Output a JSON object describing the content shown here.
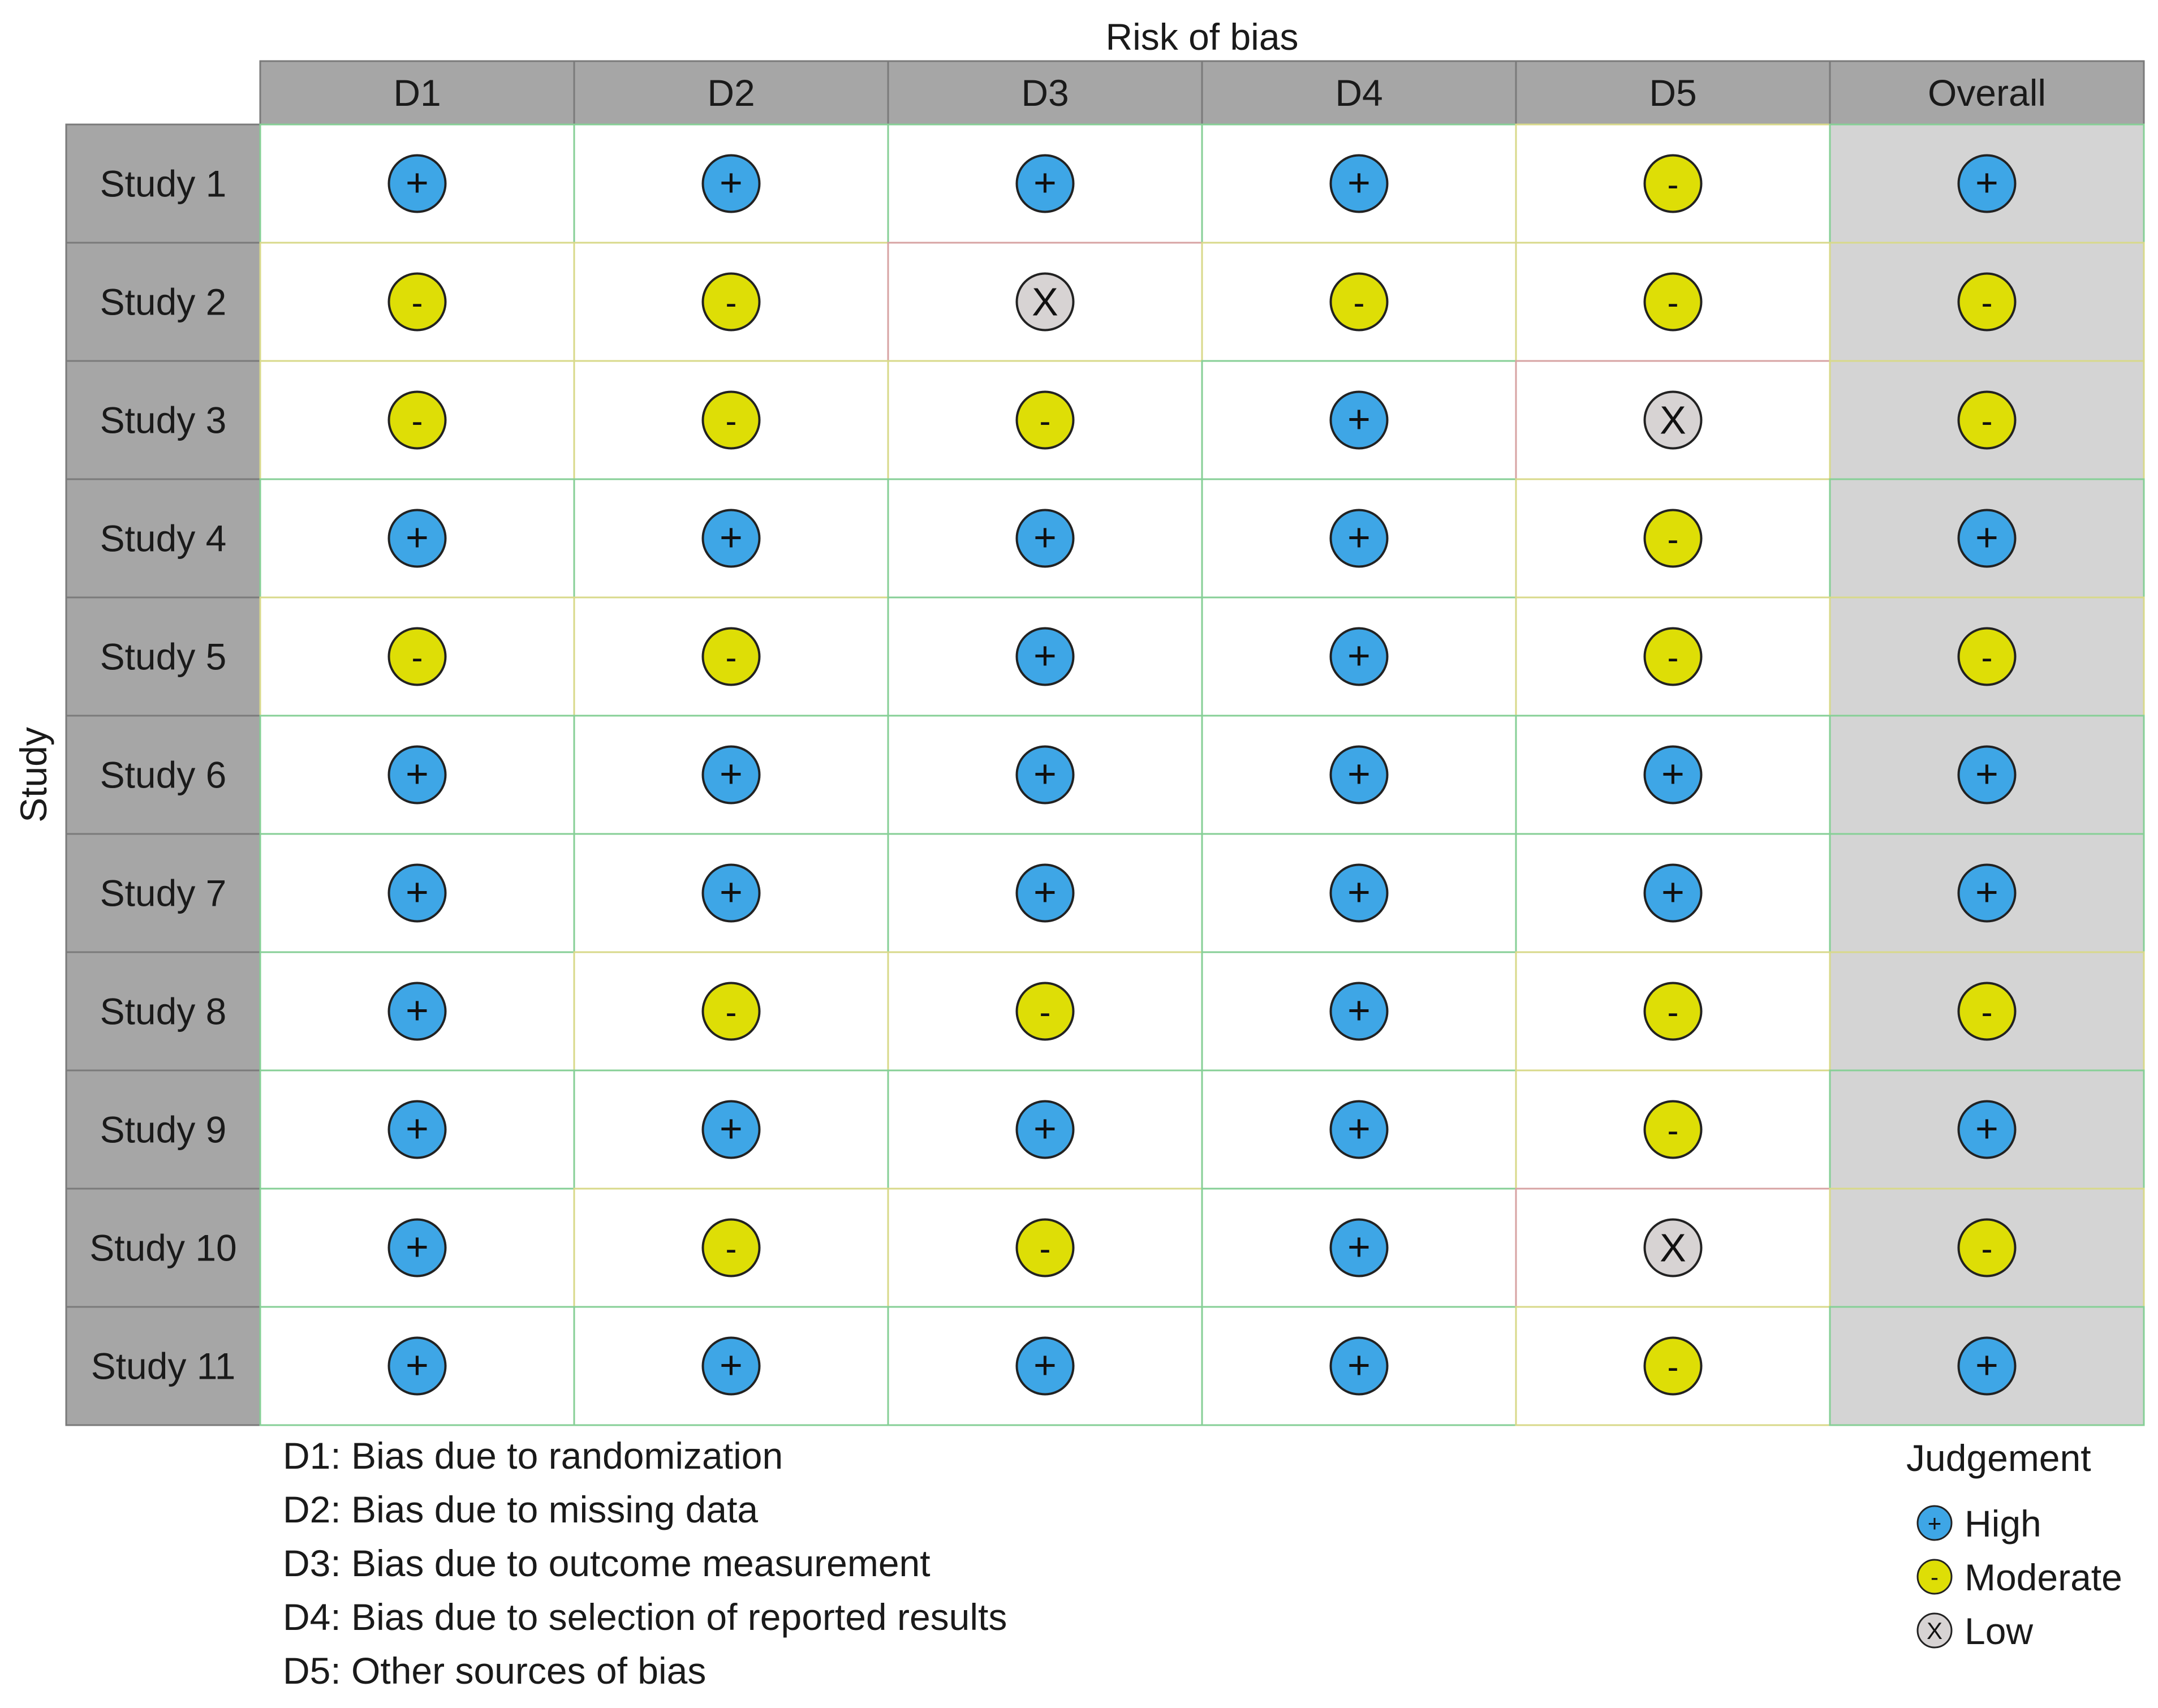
{
  "chart_data": {
    "type": "table",
    "title": "Risk of bias",
    "row_axis_label": "Study",
    "columns": [
      "D1",
      "D2",
      "D3",
      "D4",
      "D5",
      "Overall"
    ],
    "rows": [
      {
        "study": "Study 1",
        "judgements": [
          "High",
          "High",
          "High",
          "High",
          "Moderate",
          "High"
        ]
      },
      {
        "study": "Study 2",
        "judgements": [
          "Moderate",
          "Moderate",
          "Low",
          "Moderate",
          "Moderate",
          "Moderate"
        ]
      },
      {
        "study": "Study 3",
        "judgements": [
          "Moderate",
          "Moderate",
          "Moderate",
          "High",
          "Low",
          "Moderate"
        ]
      },
      {
        "study": "Study 4",
        "judgements": [
          "High",
          "High",
          "High",
          "High",
          "Moderate",
          "High"
        ]
      },
      {
        "study": "Study 5",
        "judgements": [
          "Moderate",
          "Moderate",
          "High",
          "High",
          "Moderate",
          "Moderate"
        ]
      },
      {
        "study": "Study 6",
        "judgements": [
          "High",
          "High",
          "High",
          "High",
          "High",
          "High"
        ]
      },
      {
        "study": "Study 7",
        "judgements": [
          "High",
          "High",
          "High",
          "High",
          "High",
          "High"
        ]
      },
      {
        "study": "Study 8",
        "judgements": [
          "High",
          "Moderate",
          "Moderate",
          "High",
          "Moderate",
          "Moderate"
        ]
      },
      {
        "study": "Study 9",
        "judgements": [
          "High",
          "High",
          "High",
          "High",
          "Moderate",
          "High"
        ]
      },
      {
        "study": "Study 10",
        "judgements": [
          "High",
          "Moderate",
          "Moderate",
          "High",
          "Low",
          "Moderate"
        ]
      },
      {
        "study": "Study 11",
        "judgements": [
          "High",
          "High",
          "High",
          "High",
          "Moderate",
          "High"
        ]
      }
    ],
    "domain_legend": [
      "D1: Bias due to randomization",
      "D2: Bias due to missing data",
      "D3: Bias due to outcome measurement",
      "D4: Bias due to selection of reported results",
      "D5: Other sources of bias"
    ],
    "judgement_legend": {
      "title": "Judgement",
      "items": [
        {
          "label": "High",
          "symbol": "+",
          "color": "#3ea6e6"
        },
        {
          "label": "Moderate",
          "symbol": "-",
          "color": "#dede06"
        },
        {
          "label": "Low",
          "symbol": "X",
          "color": "#d7d3d3"
        }
      ]
    },
    "colors": {
      "header_bg": "#a6a6a6",
      "overall_bg": "#d4d4d4",
      "cell_border": "#86cf96"
    }
  }
}
